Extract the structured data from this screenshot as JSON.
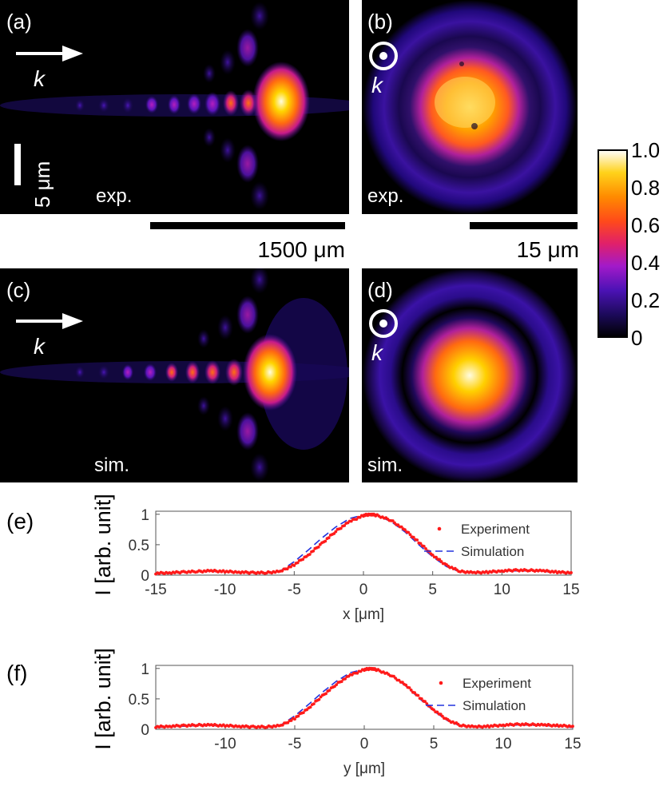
{
  "panels": {
    "a": {
      "tag": "(a)",
      "arrow_label": "k",
      "type_label": "exp.",
      "vscale_label": "5 μm"
    },
    "b": {
      "tag": "(b)",
      "arrow_label": "k",
      "type_label": "exp."
    },
    "c": {
      "tag": "(c)",
      "arrow_label": "k",
      "type_label": "sim."
    },
    "d": {
      "tag": "(d)",
      "arrow_label": "k",
      "type_label": "sim."
    },
    "e": {
      "tag": "(e)"
    },
    "f": {
      "tag": "(f)"
    }
  },
  "scalebars": {
    "longitudinal": "1500 μm",
    "transverse": "15 μm"
  },
  "colorbar": {
    "ticks": [
      "1.0",
      "0.8",
      "0.6",
      "0.4",
      "0.2",
      "0"
    ]
  },
  "colors": {
    "experiment": "#ff1a1a",
    "simulation": "#2233dd"
  },
  "chart_data": [
    {
      "type": "line",
      "panel": "(e)",
      "xlabel": "x [μm]",
      "ylabel": "I [arb. unit]",
      "xlim": [
        -15,
        15
      ],
      "ylim": [
        0,
        1.05
      ],
      "xticks": [
        "-15",
        "-10",
        "-5",
        "0",
        "5",
        "10",
        "15"
      ],
      "yticks": [
        "0",
        "0.5",
        "1"
      ],
      "legend": [
        "Experiment",
        "Simulation"
      ],
      "legend_position": "right",
      "series": [
        {
          "name": "Experiment",
          "style": "markers",
          "x": [
            -15,
            -14,
            -13,
            -12,
            -11,
            -10,
            -9,
            -8,
            -7,
            -6,
            -5,
            -4,
            -3,
            -2,
            -1,
            0,
            0.5,
            1,
            2,
            3,
            4,
            5,
            6,
            7,
            8,
            9,
            10,
            11,
            12,
            13,
            14,
            15
          ],
          "y": [
            0.03,
            0.04,
            0.05,
            0.06,
            0.07,
            0.06,
            0.05,
            0.04,
            0.04,
            0.06,
            0.17,
            0.33,
            0.52,
            0.72,
            0.88,
            0.98,
            1.0,
            0.98,
            0.9,
            0.74,
            0.54,
            0.33,
            0.16,
            0.06,
            0.04,
            0.05,
            0.07,
            0.08,
            0.08,
            0.07,
            0.05,
            0.04
          ]
        },
        {
          "name": "Simulation",
          "style": "dashed",
          "x": [
            -15,
            -14,
            -13,
            -12,
            -11,
            -10,
            -9,
            -8,
            -7,
            -6,
            -5,
            -4,
            -3,
            -2,
            -1,
            0,
            0.5,
            1,
            2,
            3,
            4,
            5,
            6,
            7,
            8,
            9,
            10,
            11,
            12,
            13,
            14,
            15
          ],
          "y": [
            0.03,
            0.04,
            0.05,
            0.06,
            0.06,
            0.06,
            0.05,
            0.04,
            0.04,
            0.07,
            0.22,
            0.41,
            0.61,
            0.79,
            0.93,
            0.99,
            1.0,
            0.98,
            0.88,
            0.71,
            0.5,
            0.3,
            0.14,
            0.05,
            0.04,
            0.05,
            0.06,
            0.07,
            0.07,
            0.06,
            0.05,
            0.03
          ]
        }
      ]
    },
    {
      "type": "line",
      "panel": "(f)",
      "xlabel": "y [μm]",
      "ylabel": "I [arb. unit]",
      "xlim": [
        -15,
        15
      ],
      "ylim": [
        0,
        1.05
      ],
      "xticks": [
        "-10",
        "-5",
        "0",
        "5",
        "10",
        "15"
      ],
      "yticks": [
        "0",
        "0.5",
        "1"
      ],
      "legend": [
        "Experiment",
        "Simulation"
      ],
      "legend_position": "right",
      "series": [
        {
          "name": "Experiment",
          "style": "markers",
          "x": [
            -15,
            -14,
            -13,
            -12,
            -11,
            -10,
            -9,
            -8,
            -7,
            -6,
            -5,
            -4,
            -3,
            -2,
            -1,
            0,
            0.5,
            1,
            2,
            3,
            4,
            5,
            6,
            7,
            8,
            9,
            10,
            11,
            12,
            13,
            14,
            15
          ],
          "y": [
            0.04,
            0.05,
            0.06,
            0.07,
            0.07,
            0.06,
            0.05,
            0.04,
            0.04,
            0.06,
            0.18,
            0.35,
            0.55,
            0.74,
            0.89,
            0.98,
            1.0,
            0.97,
            0.88,
            0.72,
            0.52,
            0.32,
            0.15,
            0.06,
            0.04,
            0.05,
            0.07,
            0.08,
            0.08,
            0.07,
            0.06,
            0.05
          ]
        },
        {
          "name": "Simulation",
          "style": "dashed",
          "x": [
            -15,
            -14,
            -13,
            -12,
            -11,
            -10,
            -9,
            -8,
            -7,
            -6,
            -5,
            -4,
            -3,
            -2,
            -1,
            0,
            0.5,
            1,
            2,
            3,
            4,
            5,
            6,
            7,
            8,
            9,
            10,
            11,
            12,
            13,
            14,
            15
          ],
          "y": [
            0.03,
            0.04,
            0.05,
            0.06,
            0.06,
            0.06,
            0.05,
            0.04,
            0.04,
            0.07,
            0.22,
            0.41,
            0.61,
            0.79,
            0.93,
            0.99,
            1.0,
            0.98,
            0.88,
            0.71,
            0.5,
            0.3,
            0.14,
            0.05,
            0.04,
            0.05,
            0.06,
            0.07,
            0.07,
            0.06,
            0.05,
            0.03
          ]
        }
      ]
    }
  ]
}
